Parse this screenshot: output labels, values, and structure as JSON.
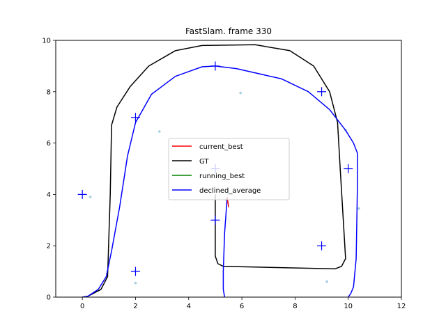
{
  "chart_data": {
    "type": "line",
    "title": "FastSlam. frame 330",
    "xlabel": "",
    "ylabel": "",
    "xlim": [
      -1,
      12
    ],
    "ylim": [
      0,
      10
    ],
    "xticks": [
      "0",
      "2",
      "4",
      "6",
      "8",
      "10",
      "12"
    ],
    "yticks": [
      "0",
      "2",
      "4",
      "6",
      "8",
      "10"
    ],
    "grid": false,
    "legend_position": "center",
    "colors": {
      "current_best": "#ff0000",
      "GT": "#000000",
      "running_best": "#008000",
      "declined_average": "#0000ff",
      "landmarks": "#0000ff",
      "particles": "#a6cee3"
    },
    "series": [
      {
        "name": "GT",
        "points": [
          [
            5.0,
            4.0
          ],
          [
            5.0,
            1.6
          ],
          [
            5.1,
            1.3
          ],
          [
            5.3,
            1.2
          ],
          [
            9.5,
            1.1
          ],
          [
            9.75,
            1.2
          ],
          [
            9.9,
            1.5
          ],
          [
            9.7,
            5.0
          ],
          [
            9.6,
            6.8
          ],
          [
            9.3,
            8.0
          ],
          [
            8.7,
            9.0
          ],
          [
            7.8,
            9.6
          ],
          [
            6.5,
            9.83
          ],
          [
            4.5,
            9.8
          ],
          [
            3.5,
            9.6
          ],
          [
            2.5,
            9.0
          ],
          [
            1.8,
            8.2
          ],
          [
            1.3,
            7.4
          ],
          [
            1.1,
            6.7
          ],
          [
            1.05,
            4.0
          ],
          [
            0.95,
            0.8
          ],
          [
            0.7,
            0.3
          ],
          [
            0.2,
            0.03
          ],
          [
            0.0,
            0.0
          ]
        ]
      },
      {
        "name": "declined_average",
        "points": [
          [
            0.0,
            0.0
          ],
          [
            0.2,
            0.03
          ],
          [
            0.6,
            0.3
          ],
          [
            0.9,
            0.8
          ],
          [
            1.1,
            1.8
          ],
          [
            1.4,
            3.5
          ],
          [
            1.7,
            5.5
          ],
          [
            2.0,
            6.8
          ],
          [
            2.6,
            7.9
          ],
          [
            3.5,
            8.6
          ],
          [
            4.5,
            8.97
          ],
          [
            5.0,
            9.0
          ],
          [
            5.8,
            8.9
          ],
          [
            7.5,
            8.5
          ],
          [
            8.5,
            8.0
          ],
          [
            9.3,
            7.3
          ],
          [
            9.9,
            6.5
          ],
          [
            10.2,
            6.0
          ],
          [
            10.35,
            5.6
          ],
          [
            10.35,
            4.5
          ],
          [
            10.3,
            1.5
          ],
          [
            10.2,
            0.4
          ],
          [
            10.1,
            0.15
          ],
          [
            10.0,
            0.0
          ]
        ]
      },
      {
        "name": "declined_average",
        "points": [
          [
            5.35,
            0.0
          ],
          [
            5.3,
            0.3
          ],
          [
            5.3,
            1.0
          ],
          [
            5.35,
            2.5
          ],
          [
            5.45,
            3.9
          ]
        ]
      },
      {
        "name": "current_best",
        "points": [
          [
            5.45,
            3.9
          ],
          [
            5.5,
            3.5
          ]
        ]
      },
      {
        "name": "running_best",
        "points": []
      }
    ],
    "landmarks": [
      [
        0,
        4
      ],
      [
        2,
        1
      ],
      [
        2,
        7
      ],
      [
        5,
        9
      ],
      [
        5,
        5
      ],
      [
        5,
        3
      ],
      [
        9,
        8
      ],
      [
        10,
        5
      ],
      [
        9,
        2
      ]
    ],
    "particles": [
      [
        0.3,
        3.9
      ],
      [
        2.0,
        0.55
      ],
      [
        2.9,
        6.45
      ],
      [
        5.95,
        7.95
      ],
      [
        9.2,
        0.6
      ],
      [
        9.9,
        6.5
      ],
      [
        10.4,
        3.45
      ],
      [
        5.45,
        4.0
      ],
      [
        5.4,
        3.8
      ]
    ],
    "legend": {
      "entries": [
        "current_best",
        "GT",
        "running_best",
        "declined_average"
      ]
    }
  }
}
